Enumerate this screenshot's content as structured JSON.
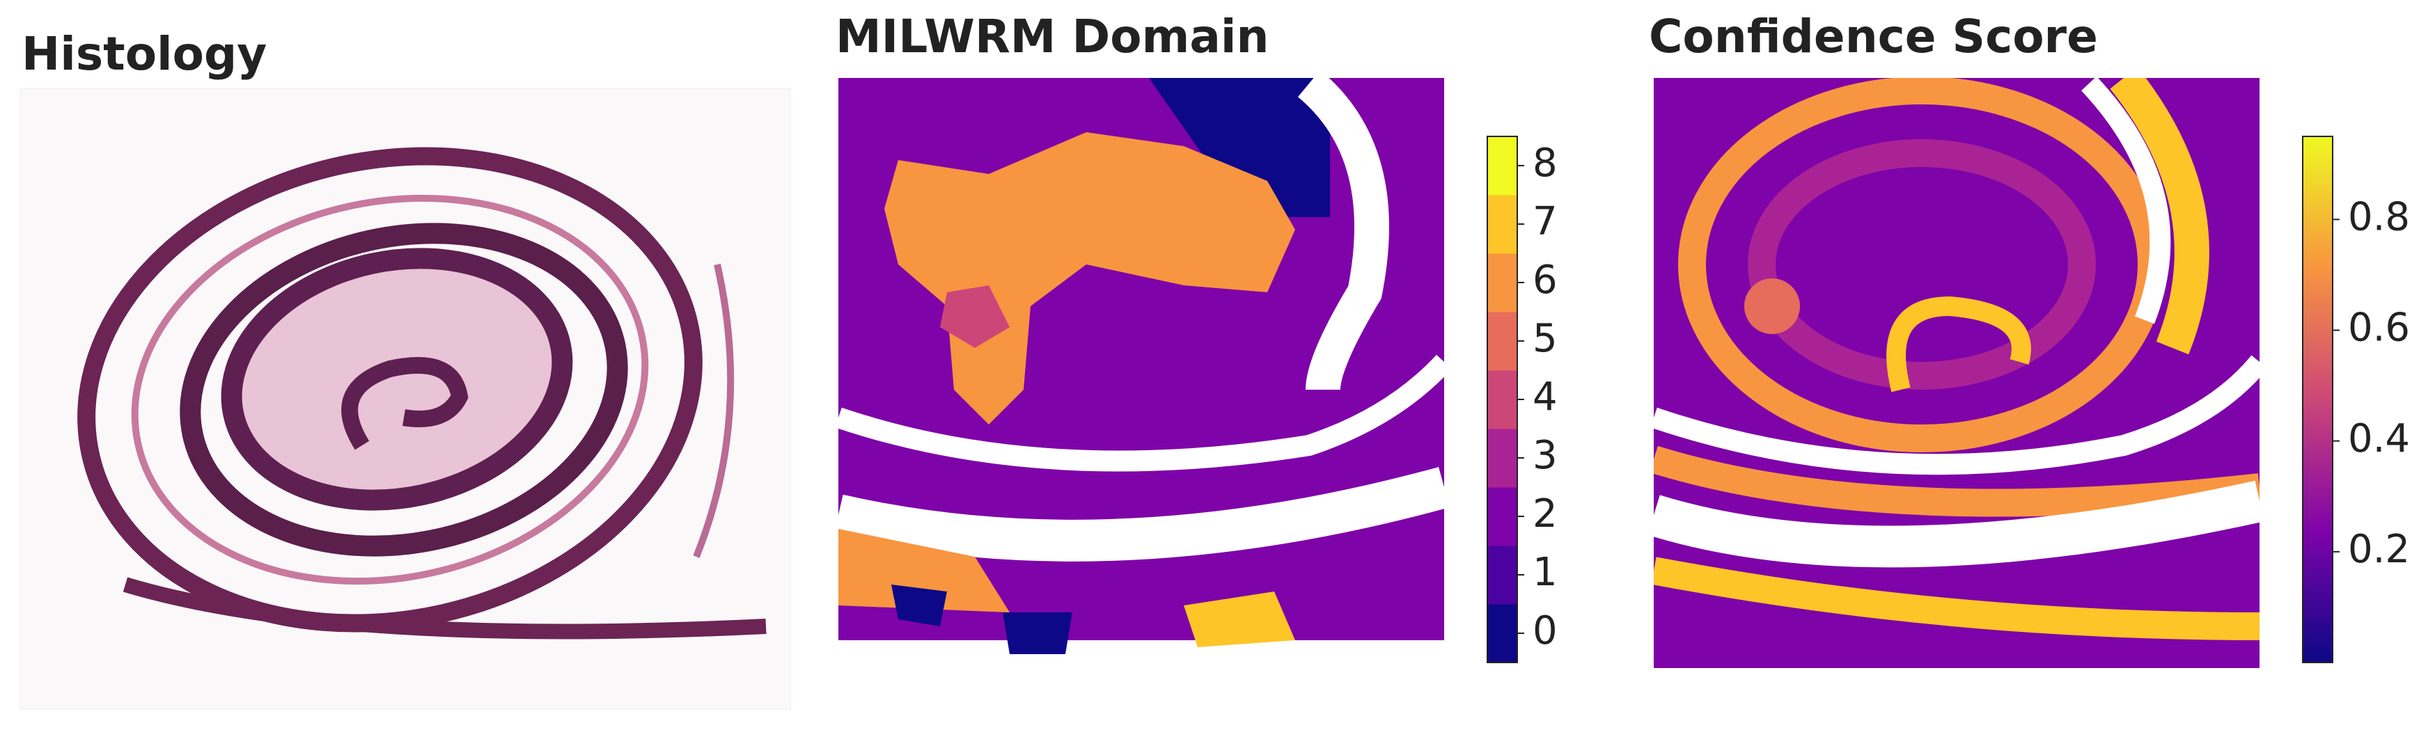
{
  "chart_data": [
    {
      "type": "image",
      "title": "Histology"
    },
    {
      "type": "spatial",
      "title": "MILWRM Domain",
      "discrete": true,
      "clim": [
        -0.5,
        8.5
      ],
      "cticks": [
        0,
        1,
        2,
        3,
        4,
        5,
        6,
        7,
        8
      ],
      "colors": [
        "#0d0887",
        "#4c02a1",
        "#7e03a8",
        "#a92395",
        "#cc4778",
        "#e66c5c",
        "#f89540",
        "#fdc527",
        "#f0f921"
      ]
    },
    {
      "type": "spatial",
      "title": "Confidence Score",
      "discrete": false,
      "clim": [
        0,
        0.95
      ],
      "cticks": [
        0.2,
        0.4,
        0.6,
        0.8
      ],
      "colors": [
        "#0d0887",
        "#7e03a8",
        "#cc4778",
        "#f89540",
        "#f0f921"
      ]
    }
  ]
}
